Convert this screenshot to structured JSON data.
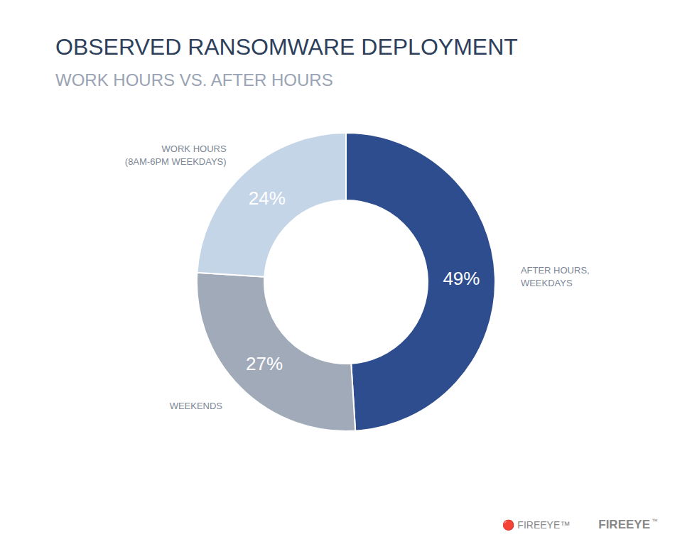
{
  "chart_data": {
    "type": "pie",
    "title": "OBSERVED RANSOMWARE DEPLOYMENT",
    "subtitle": "WORK HOURS VS. AFTER HOURS",
    "categories": [
      "AFTER HOURS,\nWEEKDAYS",
      "WEEKENDS",
      "WORK HOURS\n(8AM-6PM WEEKDAYS)"
    ],
    "values": [
      49,
      27,
      24
    ],
    "value_labels": [
      "49%",
      "27%",
      "24%"
    ],
    "colors": [
      "#2e4d8e",
      "#a0aab8",
      "#c5d5e8"
    ],
    "data_labels": true,
    "annotations": [
      "🔴 FIREEYE™",
      "FIREEYE",
      "™"
    ]
  }
}
